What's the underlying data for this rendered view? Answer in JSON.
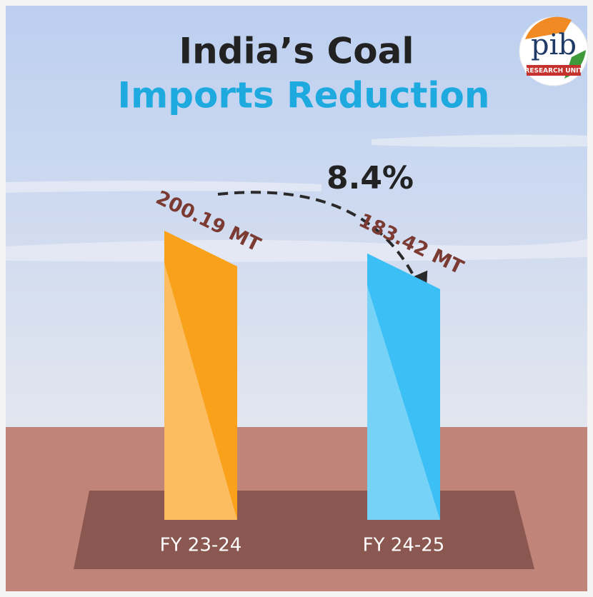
{
  "chart_data": {
    "type": "bar",
    "title": "India’s Coal",
    "subtitle": "Imports Reduction",
    "categories": [
      "FY 23-24",
      "FY 24-25"
    ],
    "values": [
      200.19,
      183.42
    ],
    "value_labels": [
      "200.19 MT",
      "183.42 MT"
    ],
    "colors": [
      "#f9a11b",
      "#3bbff4"
    ],
    "annotation": "8.4%"
  },
  "logo": {
    "text": "pib",
    "subtitle": "RESEARCH UNIT"
  }
}
